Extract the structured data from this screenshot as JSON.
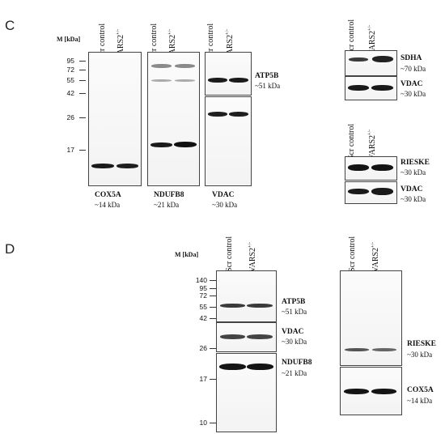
{
  "panelC": {
    "letter": "C",
    "mw_title": "M [kDa]",
    "markers": [
      "95",
      "72",
      "55",
      "42",
      "26",
      "17"
    ],
    "lane_scr": "Scr control",
    "lane_vars_base": "VARS2",
    "lane_vars_sup": "+/-",
    "cox5a": {
      "name": "COX5A",
      "size": "~14 kDa"
    },
    "ndufb8": {
      "name": "NDUFB8",
      "size": "~21 kDa"
    },
    "vdac_bottom": {
      "name": "VDAC",
      "size": "~30 kDa"
    },
    "atp5b": {
      "name": "ATP5B",
      "size": "~51 kDa"
    },
    "sdha": {
      "name": "SDHA",
      "size": "~70 kDa"
    },
    "vdac_r1": {
      "name": "VDAC",
      "size": "~30 kDa"
    },
    "rieske": {
      "name": "RIESKE",
      "size": "~30 kDa"
    },
    "vdac_r2": {
      "name": "VDAC",
      "size": "~30 kDa"
    }
  },
  "panelD": {
    "letter": "D",
    "mw_title": "M [kDa]",
    "markers": [
      "140",
      "95",
      "72",
      "55",
      "42",
      "26",
      "17",
      "10"
    ],
    "lane_scr": "Scr control",
    "lane_vars_base": "VARS2",
    "lane_vars_sup": "+/-",
    "atp5b": {
      "name": "ATP5B",
      "size": "~51 kDa"
    },
    "vdac": {
      "name": "VDAC",
      "size": "~30 kDa"
    },
    "ndufb8": {
      "name": "NDUFB8",
      "size": "~21 kDa"
    },
    "rieske": {
      "name": "RIESKE",
      "size": "~30 kDa"
    },
    "cox5a": {
      "name": "COX5A",
      "size": "~14 kDa"
    }
  }
}
